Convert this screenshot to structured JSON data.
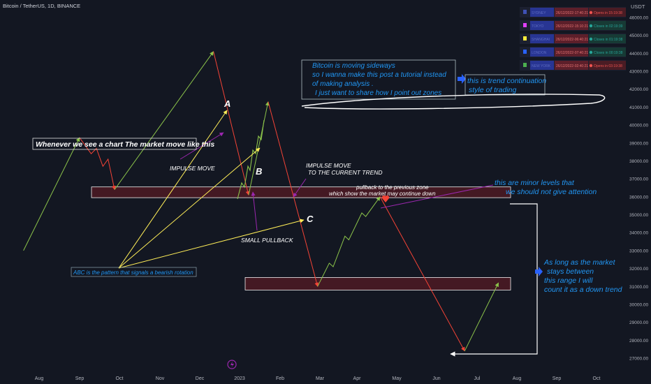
{
  "header": {
    "symbol_title": "Bitcoin / TetherUS, 1D, BINANCE"
  },
  "price_axis": {
    "unit_label": "USDT",
    "ticks": [
      "46000.00",
      "45000.00",
      "44000.00",
      "43000.00",
      "42000.00",
      "41000.00",
      "40000.00",
      "39000.00",
      "38000.00",
      "37000.00",
      "36000.00",
      "35000.00",
      "34000.00",
      "33000.00",
      "32000.00",
      "31000.00",
      "30000.00",
      "29000.00",
      "28000.00",
      "27000.00"
    ]
  },
  "time_axis": {
    "ticks": [
      "Aug",
      "Sep",
      "Oct",
      "Nov",
      "Dec",
      "2023",
      "Feb",
      "Mar",
      "Apr",
      "May",
      "Jun",
      "Jul",
      "Aug",
      "Sep",
      "Oct"
    ]
  },
  "sessions_table": {
    "rows": [
      {
        "name": "SYDNEY",
        "datetime": "26/12/2022-17:40:21",
        "status": "Opens in 15:19:38",
        "color": "#3f51b5",
        "status_color": "#ef5350"
      },
      {
        "name": "TOKYO",
        "datetime": "26/12/2022-15:10:21",
        "status": "Closes in 02:19:39",
        "color": "#e040fb",
        "status_color": "#26a69a"
      },
      {
        "name": "SHANGHAI",
        "datetime": "26/12/2022-06:40:21",
        "status": "Closes in 01:19:38",
        "color": "#ffeb3b",
        "status_color": "#26a69a"
      },
      {
        "name": "LONDON",
        "datetime": "26/12/2022-07:40:21",
        "status": "Closes in 00:19:38",
        "color": "#2962ff",
        "status_color": "#26a69a"
      },
      {
        "name": "NEW YORK",
        "datetime": "26/12/2022-02:40:21",
        "status": "Opens in 03:19:38",
        "color": "#4caf50",
        "status_color": "#ef5350"
      }
    ]
  },
  "annotations": {
    "intro_note": [
      "Bitcoin is moving sideways",
      "so I wanna make this post a tutorial instead",
      "of making analysis .",
      "I just want to share how I point out zones"
    ],
    "trend_note": [
      "this is trend continuation",
      "style of trading"
    ],
    "market_move": "Whenever we see a chart The market move like this",
    "impulse_left": "IMPULSE  MOVE",
    "impulse_current": [
      "IMPULSE MOVE",
      "TO THE CURRENT TREND"
    ],
    "pullback_zone": [
      "pullback to the previous zone",
      "which show the market may continue down"
    ],
    "minor_levels": [
      "this are minor levels that",
      "we should not give attention"
    ],
    "small_pullback": "SMALL PULLBACK",
    "abc_pattern": "ABC is the pattern that signals a bearish rotation",
    "range_note": [
      "As long as the market",
      "stays between",
      "this range I will",
      "count it as a down trend"
    ],
    "wave_a": "A",
    "wave_b": "B",
    "wave_c": "C"
  },
  "chart_data": {
    "type": "line",
    "title": "Bitcoin / TetherUS, 1D, BINANCE",
    "xlabel": "",
    "ylabel": "USDT",
    "ylim": [
      26800,
      47200
    ],
    "grid": false,
    "zones": [
      {
        "name": "upper zone",
        "low": 35950,
        "high": 36550
      },
      {
        "name": "lower zone",
        "low": 30800,
        "high": 31500
      }
    ],
    "series": [
      {
        "color": "#8bc34a",
        "points": [
          [
            "2022-07-20",
            33000
          ],
          [
            "2022-09-01",
            39300
          ]
        ]
      },
      {
        "color": "#f44336",
        "points": [
          [
            "2022-09-01",
            39300
          ],
          [
            "2022-09-10",
            38400
          ],
          [
            "2022-09-14",
            38700
          ],
          [
            "2022-09-19",
            37700
          ],
          [
            "2022-09-23",
            38100
          ],
          [
            "2022-09-28",
            36400
          ]
        ]
      },
      {
        "color": "#8bc34a",
        "points": [
          [
            "2022-09-28",
            36400
          ],
          [
            "2022-12-13",
            44100
          ]
        ]
      },
      {
        "color": "#f44336",
        "points": [
          [
            "2022-12-13",
            44100
          ],
          [
            "2023-01-09",
            36100
          ]
        ]
      },
      {
        "color": "#8bc34a",
        "points": [
          [
            "2023-01-09",
            36100
          ],
          [
            "2023-01-24",
            41300
          ]
        ]
      },
      {
        "color": "#f44336",
        "points": [
          [
            "2023-01-24",
            41300
          ],
          [
            "2023-03-03",
            31000
          ]
        ]
      },
      {
        "color": "#8bc34a",
        "points": [
          [
            "2023-03-03",
            31000
          ],
          [
            "2023-03-12",
            32300
          ],
          [
            "2023-03-15",
            32100
          ],
          [
            "2023-03-24",
            33800
          ],
          [
            "2023-03-27",
            33600
          ],
          [
            "2023-04-06",
            35100
          ],
          [
            "2023-04-09",
            34900
          ],
          [
            "2023-04-20",
            36000
          ]
        ]
      },
      {
        "color": "#f44336",
        "points": [
          [
            "2023-04-20",
            36000
          ],
          [
            "2023-06-24",
            27400
          ]
        ]
      },
      {
        "color": "#8bc34a",
        "points": [
          [
            "2023-06-24",
            27400
          ],
          [
            "2023-07-20",
            31200
          ]
        ]
      }
    ]
  }
}
